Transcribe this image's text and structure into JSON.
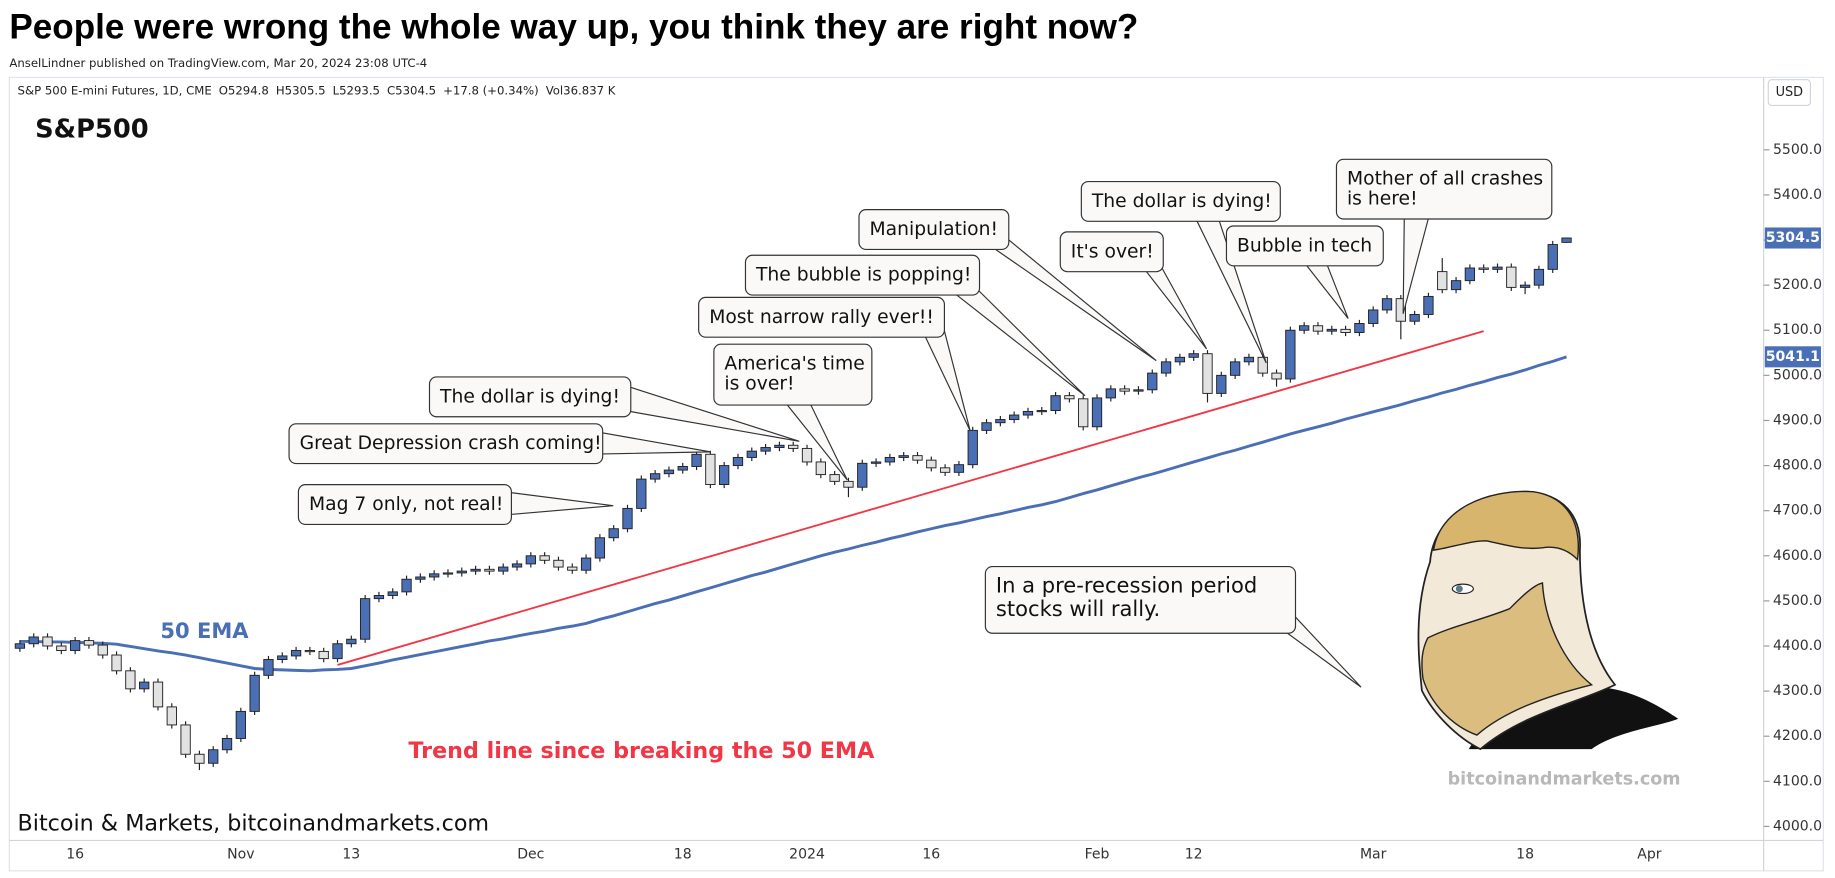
{
  "header": {
    "title": "People were wrong the whole way up, you think they are right now?",
    "subtitle": "AnselLindner published on TradingView.com, Mar 20, 2024 23:08 UTC-4"
  },
  "chart_data": {
    "type": "candlestick",
    "symbol_info": [
      "S&P 500 E-mini Futures, 1D, CME",
      "O5294.8",
      "H5305.5",
      "L5293.5",
      "C5304.5",
      "+17.8 (+0.34%)",
      "Vol36.837 K"
    ],
    "label": "S&P500",
    "currency": "USD",
    "up_color": "#4a6fb5",
    "down_color": "#e2e2e2",
    "categories": [
      null,
      null,
      null,
      null,
      "16",
      null,
      null,
      null,
      null,
      null,
      null,
      null,
      null,
      null,
      null,
      null,
      "Nov",
      null,
      null,
      null,
      null,
      null,
      null,
      null,
      "13",
      null,
      null,
      null,
      null,
      null,
      null,
      null,
      null,
      null,
      null,
      null,
      null,
      "Dec",
      null,
      null,
      null,
      null,
      null,
      null,
      null,
      null,
      null,
      null,
      "18",
      null,
      null,
      null,
      null,
      null,
      null,
      null,
      null,
      "2024",
      null,
      null,
      null,
      null,
      null,
      null,
      null,
      null,
      "16",
      null,
      null,
      null,
      null,
      null,
      null,
      null,
      null,
      null,
      null,
      null,
      "Feb",
      null,
      null,
      null,
      null,
      null,
      null,
      "12",
      null,
      null,
      null,
      null,
      null,
      null,
      null,
      null,
      null,
      null,
      null,
      null,
      "Mar",
      null,
      null,
      null,
      null,
      null,
      null,
      null,
      null,
      null,
      null,
      "18",
      null,
      null,
      null,
      null,
      null,
      null,
      null,
      null,
      "Apr"
    ],
    "open": [
      4395,
      4405,
      4420,
      4400,
      4390,
      4412,
      4402,
      4380,
      4345,
      4305,
      4320,
      4265,
      4225,
      4160,
      4140,
      4170,
      4195,
      4255,
      4335,
      4370,
      4378,
      4390,
      4388,
      4372,
      4405,
      4415,
      4505,
      4512,
      4520,
      4548,
      4553,
      4560,
      4562,
      4566,
      4570,
      4566,
      4575,
      4582,
      4600,
      4590,
      4575,
      4568,
      4595,
      4640,
      4660,
      4705,
      4770,
      4782,
      4790,
      4798,
      4825,
      4758,
      4800,
      4818,
      4832,
      4840,
      4845,
      4838,
      4808,
      4780,
      4765,
      4752,
      4805,
      4808,
      4818,
      4822,
      4812,
      4795,
      4785,
      4802,
      4878,
      4895,
      4902,
      4912,
      4920,
      4922,
      4955,
      4948,
      4886,
      4950,
      4970,
      4965,
      4968,
      5005,
      5030,
      5040,
      5048,
      4960,
      5000,
      5030,
      5040,
      5005,
      4992,
      5100,
      5110,
      5098,
      5102,
      5095,
      5115,
      5145,
      5170,
      5120,
      5135,
      5230,
      5190,
      5210,
      5238,
      5235,
      5240,
      5195,
      5200,
      5235,
      5294.8,
      null,
      null,
      null,
      null,
      null,
      null
    ],
    "high": [
      4413,
      4428,
      4428,
      4408,
      4420,
      4420,
      4410,
      4388,
      4353,
      4328,
      4328,
      4273,
      4233,
      4168,
      4178,
      4203,
      4263,
      4343,
      4378,
      4386,
      4398,
      4398,
      4396,
      4413,
      4423,
      4513,
      4520,
      4528,
      4556,
      4561,
      4568,
      4570,
      4574,
      4578,
      4578,
      4583,
      4590,
      4608,
      4608,
      4598,
      4583,
      4603,
      4648,
      4668,
      4713,
      4778,
      4790,
      4798,
      4806,
      4833,
      4833,
      4808,
      4826,
      4840,
      4848,
      4853,
      4853,
      4846,
      4816,
      4788,
      4773,
      4813,
      4816,
      4826,
      4830,
      4830,
      4820,
      4803,
      4810,
      4886,
      4903,
      4910,
      4920,
      4928,
      4930,
      4963,
      4963,
      4956,
      4958,
      4978,
      4978,
      4976,
      5013,
      5038,
      5048,
      5056,
      5056,
      5008,
      5038,
      5048,
      5048,
      5013,
      5108,
      5118,
      5118,
      5110,
      5110,
      5123,
      5153,
      5178,
      5178,
      5143,
      5183,
      5260,
      5218,
      5246,
      5246,
      5248,
      5248,
      5208,
      5243,
      5298,
      5305.5,
      null,
      null,
      null,
      null,
      null,
      null
    ],
    "low": [
      4387,
      4397,
      4392,
      4382,
      4382,
      4394,
      4372,
      4337,
      4297,
      4297,
      4257,
      4217,
      4152,
      4125,
      4132,
      4162,
      4187,
      4247,
      4327,
      4362,
      4370,
      4380,
      4364,
      4364,
      4397,
      4407,
      4497,
      4504,
      4512,
      4540,
      4545,
      4552,
      4554,
      4558,
      4558,
      4558,
      4567,
      4574,
      4582,
      4567,
      4560,
      4560,
      4587,
      4632,
      4652,
      4697,
      4762,
      4774,
      4782,
      4790,
      4750,
      4750,
      4792,
      4810,
      4824,
      4832,
      4830,
      4800,
      4772,
      4757,
      4730,
      4744,
      4797,
      4800,
      4810,
      4804,
      4787,
      4777,
      4777,
      4794,
      4870,
      4887,
      4894,
      4904,
      4912,
      4914,
      4940,
      4878,
      4878,
      4942,
      4957,
      4957,
      4960,
      4997,
      5022,
      5032,
      4940,
      4952,
      4992,
      5022,
      4997,
      4975,
      4984,
      5092,
      5090,
      5090,
      5087,
      5087,
      5107,
      5137,
      5080,
      5112,
      5127,
      5182,
      5182,
      5202,
      5227,
      5227,
      5187,
      5180,
      5192,
      5227,
      5293.5,
      null,
      null,
      null,
      null,
      null,
      null
    ],
    "close": [
      4405,
      4420,
      4400,
      4390,
      4412,
      4402,
      4380,
      4345,
      4305,
      4320,
      4265,
      4225,
      4160,
      4140,
      4170,
      4195,
      4255,
      4335,
      4370,
      4378,
      4390,
      4388,
      4372,
      4405,
      4415,
      4505,
      4512,
      4520,
      4548,
      4553,
      4560,
      4562,
      4566,
      4570,
      4566,
      4575,
      4582,
      4600,
      4590,
      4575,
      4568,
      4595,
      4640,
      4660,
      4705,
      4770,
      4782,
      4790,
      4798,
      4825,
      4758,
      4800,
      4818,
      4832,
      4840,
      4845,
      4838,
      4808,
      4780,
      4765,
      4752,
      4805,
      4808,
      4818,
      4822,
      4812,
      4795,
      4785,
      4802,
      4878,
      4895,
      4902,
      4912,
      4920,
      4922,
      4955,
      4948,
      4886,
      4950,
      4970,
      4965,
      4968,
      5005,
      5030,
      5040,
      5048,
      4960,
      5000,
      5030,
      5040,
      5005,
      4992,
      5100,
      5110,
      5098,
      5102,
      5095,
      5115,
      5145,
      5170,
      5120,
      5135,
      5175,
      5190,
      5210,
      5238,
      5235,
      5240,
      5195,
      5200,
      5235,
      5290,
      5304.5,
      null,
      null,
      null,
      null,
      null,
      null
    ],
    "ema": {
      "name": "50 EMA",
      "color": "#4a6fb5",
      "values": [
        4410,
        4410,
        4409,
        4409,
        4408,
        4407,
        4406,
        4404,
        4399,
        4394,
        4389,
        4385,
        4380,
        4374,
        4368,
        4362,
        4356,
        4350,
        4348,
        4347,
        4346,
        4345,
        4347,
        4348,
        4350,
        4356,
        4362,
        4369,
        4375,
        4381,
        4387,
        4393,
        4399,
        4405,
        4411,
        4416,
        4422,
        4428,
        4433,
        4439,
        4444,
        4450,
        4459,
        4467,
        4476,
        4485,
        4494,
        4502,
        4511,
        4520,
        4529,
        4538,
        4547,
        4556,
        4564,
        4573,
        4582,
        4591,
        4600,
        4608,
        4615,
        4623,
        4630,
        4638,
        4645,
        4653,
        4660,
        4667,
        4673,
        4680,
        4687,
        4693,
        4700,
        4707,
        4713,
        4720,
        4729,
        4738,
        4746,
        4755,
        4764,
        4773,
        4781,
        4790,
        4799,
        4808,
        4817,
        4826,
        4834,
        4843,
        4852,
        4861,
        4870,
        4878,
        4886,
        4894,
        4903,
        4911,
        4919,
        4927,
        4935,
        4944,
        4952,
        4961,
        4969,
        4978,
        4986,
        4995,
        5003,
        5012,
        5022,
        5031,
        5041.1,
        null,
        null,
        null,
        null,
        null,
        null
      ]
    },
    "trend_line": {
      "label": "Trend line since breaking the 50 EMA",
      "color": "#f23645",
      "start": {
        "x": 23,
        "y": 4358
      },
      "end": {
        "x": 106,
        "y": 5098
      }
    },
    "ylim": [
      3969,
      5658
    ],
    "yticks": [
      {
        "value": 4000,
        "label": "4000.0"
      },
      {
        "value": 4100,
        "label": "4100.0"
      },
      {
        "value": 4200,
        "label": "4200.0"
      },
      {
        "value": 4300,
        "label": "4300.0"
      },
      {
        "value": 4400,
        "label": "4400.0"
      },
      {
        "value": 4500,
        "label": "4500.0"
      },
      {
        "value": 4600,
        "label": "4600.0"
      },
      {
        "value": 4700,
        "label": "4700.0"
      },
      {
        "value": 4800,
        "label": "4800.0"
      },
      {
        "value": 4900,
        "label": "4900.0"
      },
      {
        "value": 5000,
        "label": "5000.0"
      },
      {
        "value": 5100,
        "label": "5100.0"
      },
      {
        "value": 5200,
        "label": "5200.0"
      },
      {
        "value": 5300,
        "label": "5300.0"
      },
      {
        "value": 5400,
        "label": "5400.0"
      },
      {
        "value": 5500,
        "label": "5500.0"
      }
    ],
    "grid": false,
    "annotations": [
      [
        "Mag 7 only, not real!"
      ],
      [
        "Great Depression crash coming!"
      ],
      [
        "The dollar is dying!"
      ],
      [
        "America's time",
        "is over!"
      ],
      [
        "Most narrow rally ever!!"
      ],
      [
        "The bubble is popping!"
      ],
      [
        "Manipulation!"
      ],
      [
        "It's over!"
      ],
      [
        "The dollar is dying!"
      ],
      [
        "Bubble in tech"
      ],
      [
        "Mother of all crashes",
        "is here!"
      ],
      [
        "In a pre-recession period",
        "stocks will rally."
      ]
    ],
    "footer": "Bitcoin & Markets, bitcoinandmarkets.com",
    "watermark": "bitcoinandmarkets.com"
  }
}
